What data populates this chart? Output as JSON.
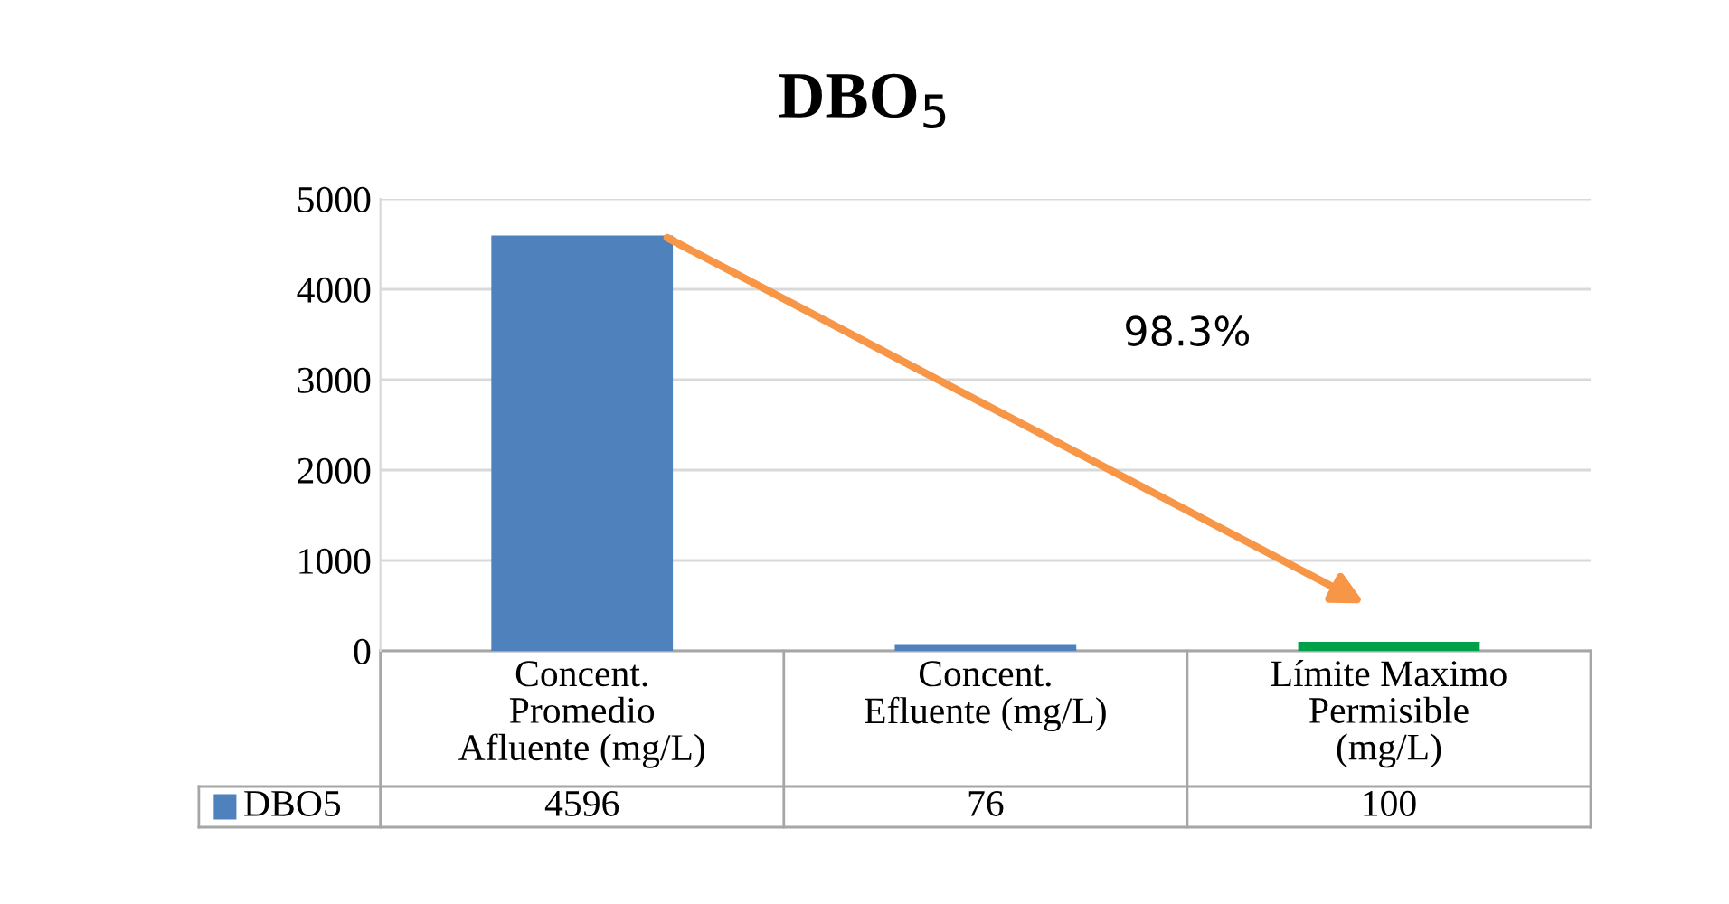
{
  "chart_data": {
    "type": "bar",
    "title": "DBO$_{5}$",
    "categories": [
      "Concent.\nPromedio\nAfluente (mg/L)",
      "Concent.\nEfluente (mg/L)",
      "Límite Maximo\nPermisible\n(mg/L)"
    ],
    "series": [
      {
        "name": "DBO5",
        "color": "#4f81bd",
        "colors": [
          "#4f81bd",
          "#4f81bd",
          "#00a04a"
        ],
        "values": [
          4596,
          76,
          100
        ]
      }
    ],
    "ylim": [
      0,
      5000
    ],
    "yticks": [
      0,
      1000,
      2000,
      3000,
      4000,
      5000
    ],
    "grid": "y",
    "data_labels": true,
    "legend": "bottom",
    "annotations": [
      {
        "text": "98.3%"
      }
    ]
  }
}
